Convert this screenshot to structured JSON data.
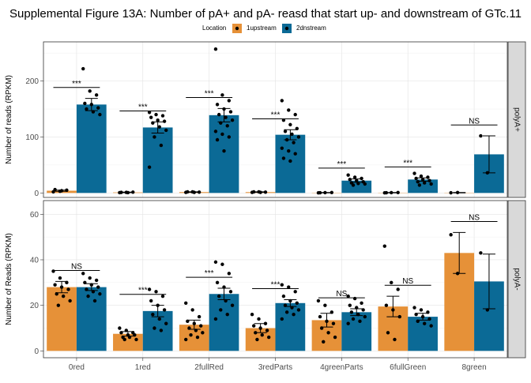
{
  "chart_data": {
    "type": "bar",
    "title": "Supplemental Figure 13A: Number of pA+ and pA- reasd that start up- and downstream of GTc.11",
    "xlabel": "",
    "categories": [
      "0red",
      "1red",
      "2fullRed",
      "3redParts",
      "4greenParts",
      "6fullGreen",
      "8green"
    ],
    "legend": {
      "title": "Location",
      "position": "top",
      "entries": [
        {
          "name": "1upstream",
          "color": "#E69138"
        },
        {
          "name": "2dnstream",
          "color": "#0B6A96"
        }
      ]
    },
    "grid": true,
    "facets": [
      {
        "strip_label": "polyA+",
        "ylabel": "Number of reads (RPKM)",
        "ylim": [
          -8,
          270
        ],
        "yticks": [
          0,
          100,
          200
        ],
        "series": [
          {
            "name": "1upstream",
            "values": [
              4,
              1,
              1.5,
              1.5,
              0.5,
              0.5,
              0.5
            ],
            "err": [
              1,
              0.5,
              0.5,
              0.5,
              0.3,
              0.3,
              0.3
            ],
            "points": [
              [
                2,
                3,
                5,
                6,
                4
              ],
              [
                0.5,
                1,
                1.5,
                1,
                0.5
              ],
              [
                1,
                2,
                1.5,
                2,
                1
              ],
              [
                1,
                2,
                1.5,
                2,
                1
              ],
              [
                0.2,
                0.6,
                0.8,
                0.4
              ],
              [
                0.2,
                0.5,
                0.8,
                0.4
              ],
              [
                0.3,
                0.8
              ]
            ]
          },
          {
            "name": "2dnstream",
            "values": [
              158,
              117,
              139,
              104,
              22,
              24,
              69
            ],
            "err": [
              11,
              10,
              12,
              9,
              3,
              3,
              33
            ],
            "points": [
              [
                222,
                182,
                175,
                160,
                158,
                152,
                150,
                145,
                140
              ],
              [
                144,
                140,
                138,
                135,
                130,
                128,
                125,
                118,
                112,
                100,
                85,
                46
              ],
              [
                257,
                175,
                165,
                158,
                150,
                145,
                140,
                135,
                130,
                125,
                120,
                110,
                105,
                100,
                95,
                75
              ],
              [
                165,
                148,
                140,
                130,
                122,
                115,
                110,
                105,
                100,
                95,
                90,
                80,
                75,
                70,
                62,
                57
              ],
              [
                32,
                28,
                26,
                24,
                22,
                20,
                18,
                17,
                16,
                14
              ],
              [
                35,
                30,
                28,
                26,
                24,
                22,
                20,
                18,
                16,
                14
              ],
              [
                102,
                36
              ]
            ]
          }
        ],
        "annotations": [
          "***",
          "***",
          "***",
          "***",
          "***",
          "***",
          "NS"
        ]
      },
      {
        "strip_label": "polyA-",
        "ylabel": "Number of Reads (RPKM)",
        "ylim": [
          -3,
          66
        ],
        "yticks": [
          0,
          20,
          40,
          60
        ],
        "series": [
          {
            "name": "1upstream",
            "values": [
              28,
              7.5,
              11.5,
              10,
              13.5,
              19.5,
              43
            ],
            "err": [
              2.5,
              1,
              2,
              2,
              3,
              4.5,
              9
            ],
            "points": [
              [
                35,
                32,
                30,
                29,
                28,
                27,
                25,
                24,
                22,
                20
              ],
              [
                10,
                9,
                8,
                8,
                7,
                7,
                6,
                6,
                5,
                5
              ],
              [
                21,
                18,
                15,
                13,
                12,
                11,
                10,
                9,
                8,
                7,
                6,
                5
              ],
              [
                16,
                14,
                12,
                11,
                10,
                9,
                8,
                7,
                6,
                5
              ],
              [
                22,
                20,
                17,
                15,
                13,
                12,
                10,
                8,
                6,
                4
              ],
              [
                46,
                30,
                27,
                20,
                18,
                15,
                8,
                5
              ],
              [
                51,
                34
              ]
            ]
          },
          {
            "name": "2dnstream",
            "values": [
              28,
              17.5,
              25,
              21,
              17,
              15,
              30.5
            ],
            "err": [
              1.5,
              2.5,
              2.5,
              1.5,
              1.5,
              1.5,
              12
            ],
            "points": [
              [
                34,
                32,
                31,
                30,
                29,
                28,
                27,
                26,
                25,
                24,
                22
              ],
              [
                27,
                26,
                24,
                22,
                20,
                18,
                16,
                14,
                12,
                10,
                9
              ],
              [
                39,
                38,
                34,
                30,
                28,
                26,
                24,
                22,
                20,
                18,
                16,
                14
              ],
              [
                29,
                28,
                26,
                24,
                22,
                21,
                20,
                19,
                18,
                17,
                16,
                14
              ],
              [
                24,
                23,
                21,
                20,
                19,
                18,
                17,
                16,
                15,
                14,
                13,
                12
              ],
              [
                19,
                18,
                17,
                16,
                15,
                14,
                13,
                12,
                11
              ],
              [
                43,
                18
              ]
            ]
          }
        ],
        "annotations": [
          "NS",
          "***",
          "***",
          "***",
          "NS",
          "NS",
          "NS"
        ]
      }
    ]
  }
}
